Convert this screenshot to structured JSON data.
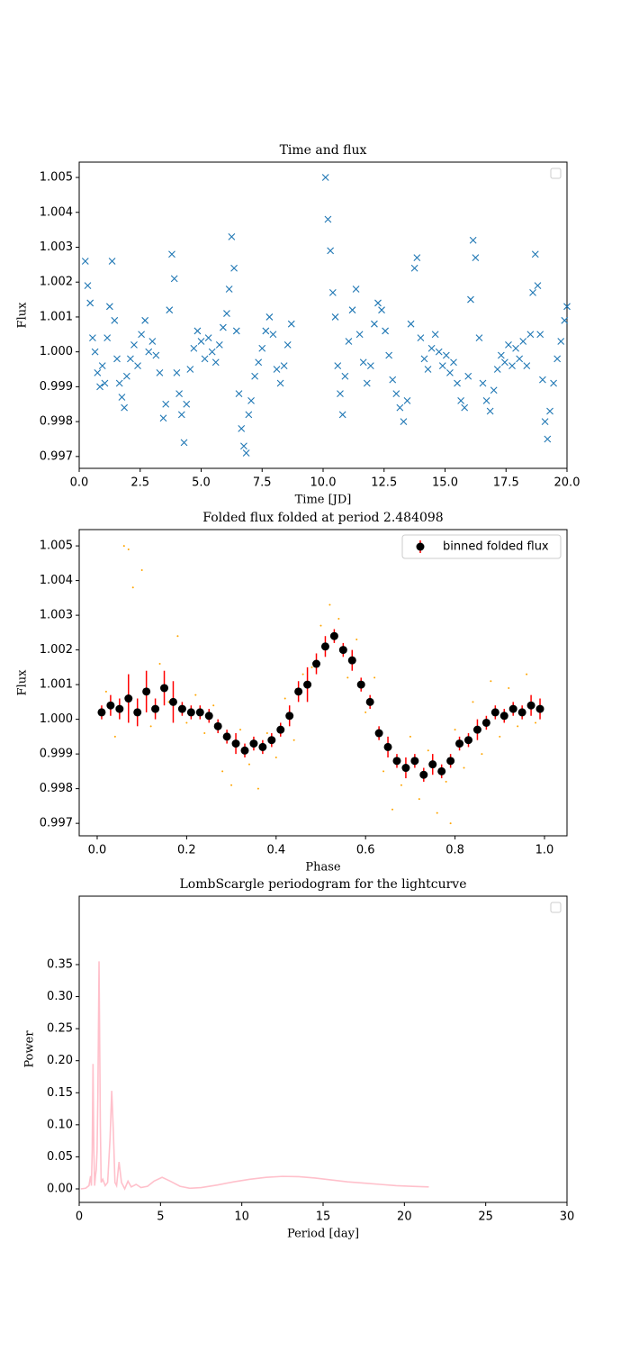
{
  "chart_data": [
    {
      "type": "scatter",
      "title": "Time and flux",
      "xlabel": "Time [JD]",
      "ylabel": "Flux",
      "legend": "upper right",
      "xlim": [
        0,
        20
      ],
      "ylim": [
        0.99666,
        1.00544
      ],
      "xticks": [
        {
          "value": 0,
          "label": "0.0"
        },
        2.5,
        {
          "value": 5,
          "label": "5.0"
        },
        7.5,
        {
          "value": 10,
          "label": "10.0"
        },
        12.5,
        {
          "value": 15,
          "label": "15.0"
        },
        17.5,
        {
          "value": 20,
          "label": "20.0"
        }
      ],
      "yticks": [
        0.997,
        0.998,
        0.999,
        {
          "value": 1,
          "label": "1.000"
        },
        1.001,
        1.002,
        1.003,
        1.004,
        1.005
      ],
      "series": [
        {
          "color": "#1f77b4",
          "marker": "x",
          "x": [
            0.25,
            0.35,
            0.45,
            0.55,
            0.65,
            0.75,
            0.85,
            0.95,
            1.05,
            1.15,
            1.25,
            1.35,
            1.45,
            1.55,
            1.65,
            1.75,
            1.85,
            1.95,
            2.1,
            2.25,
            2.4,
            2.55,
            2.7,
            2.85,
            3.0,
            3.15,
            3.3,
            3.45,
            3.55,
            3.7,
            3.8,
            3.9,
            4.0,
            4.1,
            4.2,
            4.3,
            4.4,
            4.55,
            4.7,
            4.85,
            5.0,
            5.15,
            5.3,
            5.45,
            5.6,
            5.75,
            5.9,
            6.05,
            6.15,
            6.25,
            6.35,
            6.45,
            6.55,
            6.65,
            6.75,
            6.85,
            6.95,
            7.05,
            7.2,
            7.35,
            7.5,
            7.65,
            7.8,
            7.95,
            8.1,
            8.25,
            8.4,
            8.55,
            8.7,
            10.1,
            10.2,
            10.3,
            10.4,
            10.5,
            10.6,
            10.7,
            10.8,
            10.9,
            11.05,
            11.2,
            11.35,
            11.5,
            11.65,
            11.8,
            11.95,
            12.1,
            12.25,
            12.4,
            12.55,
            12.7,
            12.85,
            13.0,
            13.15,
            13.3,
            13.45,
            13.6,
            13.75,
            13.85,
            14.0,
            14.15,
            14.3,
            14.45,
            14.6,
            14.75,
            14.9,
            15.05,
            15.2,
            15.35,
            15.5,
            15.65,
            15.8,
            15.95,
            16.05,
            16.15,
            16.25,
            16.4,
            16.55,
            16.7,
            16.85,
            17.0,
            17.15,
            17.3,
            17.45,
            17.6,
            17.75,
            17.9,
            18.05,
            18.2,
            18.35,
            18.5,
            18.6,
            18.7,
            18.8,
            18.9,
            19.0,
            19.1,
            19.2,
            19.3,
            19.45,
            19.6,
            19.75,
            19.9,
            20.0
          ],
          "values": [
            1.0026,
            1.0019,
            1.0014,
            1.0004,
            1.0,
            0.9994,
            0.999,
            0.9996,
            0.9991,
            1.0004,
            1.0013,
            1.0026,
            1.0009,
            0.9998,
            0.9991,
            0.9987,
            0.9984,
            0.9993,
            0.9998,
            1.0002,
            0.9996,
            1.0005,
            1.0009,
            1.0,
            1.0003,
            0.9999,
            0.9994,
            0.9981,
            0.9985,
            1.0012,
            1.0028,
            1.0021,
            0.9994,
            0.9988,
            0.9982,
            0.9974,
            0.9985,
            0.9995,
            1.0001,
            1.0006,
            1.0003,
            0.9998,
            1.0004,
            1.0,
            0.9997,
            1.0002,
            1.0007,
            1.0011,
            1.0018,
            1.0033,
            1.0024,
            1.0006,
            0.9988,
            0.9978,
            0.9973,
            0.9971,
            0.9982,
            0.9986,
            0.9993,
            0.9997,
            1.0001,
            1.0006,
            1.001,
            1.0005,
            0.9995,
            0.9991,
            0.9996,
            1.0002,
            1.0008,
            1.005,
            1.0038,
            1.0029,
            1.0017,
            1.001,
            0.9996,
            0.9988,
            0.9982,
            0.9993,
            1.0003,
            1.0012,
            1.0018,
            1.0005,
            0.9997,
            0.9991,
            0.9996,
            1.0008,
            1.0014,
            1.0012,
            1.0006,
            0.9999,
            0.9992,
            0.9988,
            0.9984,
            0.998,
            0.9986,
            1.0008,
            1.0024,
            1.0027,
            1.0004,
            0.9998,
            0.9995,
            1.0001,
            1.0005,
            1.0,
            0.9996,
            0.9999,
            0.9994,
            0.9997,
            0.9991,
            0.9986,
            0.9984,
            0.9993,
            1.0015,
            1.0032,
            1.0027,
            1.0004,
            0.9991,
            0.9986,
            0.9983,
            0.9989,
            0.9995,
            0.9999,
            0.9997,
            1.0002,
            0.9996,
            1.0001,
            0.9998,
            1.0003,
            0.9996,
            1.0005,
            1.0017,
            1.0028,
            1.0019,
            1.0005,
            0.9992,
            0.998,
            0.9975,
            0.9983,
            0.9991,
            0.9998,
            1.0003,
            1.0009,
            1.0013
          ]
        }
      ]
    },
    {
      "type": "scatter",
      "title": "Folded flux folded at period 2.484098",
      "xlabel": "Phase",
      "ylabel": "Flux",
      "legend": "upper right",
      "xlim": [
        -0.0402,
        1.0503
      ],
      "ylim": [
        0.99664,
        1.00547
      ],
      "xticks": [
        {
          "value": 0,
          "label": "0.0"
        },
        0.2,
        0.4,
        0.6,
        0.8,
        {
          "value": 1,
          "label": "1.0"
        }
      ],
      "yticks": [
        0.997,
        0.998,
        0.999,
        {
          "value": 1,
          "label": "1.000"
        },
        1.001,
        1.002,
        1.003,
        1.004,
        1.005
      ],
      "series": [
        {
          "color": "orange",
          "marker": ".",
          "x": [
            0.02,
            0.04,
            0.06,
            0.07,
            0.08,
            0.1,
            0.12,
            0.14,
            0.16,
            0.18,
            0.2,
            0.22,
            0.24,
            0.26,
            0.28,
            0.3,
            0.32,
            0.34,
            0.36,
            0.38,
            0.4,
            0.42,
            0.44,
            0.46,
            0.48,
            0.5,
            0.52,
            0.54,
            0.56,
            0.58,
            0.6,
            0.62,
            0.64,
            0.66,
            0.68,
            0.7,
            0.72,
            0.74,
            0.76,
            0.78,
            0.79,
            0.8,
            0.82,
            0.84,
            0.86,
            0.88,
            0.9,
            0.92,
            0.94,
            0.96,
            0.98
          ],
          "values": [
            1.0008,
            0.9995,
            1.005,
            1.0049,
            1.0038,
            1.0043,
            0.9998,
            1.0016,
            1.0005,
            1.0024,
            0.9999,
            1.0007,
            0.9996,
            1.0004,
            0.9985,
            0.9981,
            0.9997,
            0.9987,
            0.998,
            0.9996,
            0.9989,
            1.0006,
            0.9994,
            1.0013,
            1.0015,
            1.0027,
            1.0033,
            1.0029,
            1.0012,
            1.0023,
            1.0002,
            1.0012,
            0.9985,
            0.9974,
            0.9981,
            0.9995,
            0.9977,
            0.9991,
            0.9973,
            0.9982,
            0.997,
            0.9997,
            0.9986,
            1.0005,
            0.999,
            1.0011,
            0.9995,
            1.0009,
            0.9998,
            1.0013,
            0.9999
          ]
        },
        {
          "name": "binned folded flux",
          "color": "black",
          "error_color": "red",
          "marker": "o",
          "x": [
            0.01,
            0.03,
            0.05,
            0.07,
            0.09,
            0.11,
            0.13,
            0.15,
            0.17,
            0.19,
            0.21,
            0.23,
            0.25,
            0.27,
            0.29,
            0.31,
            0.33,
            0.35,
            0.37,
            0.39,
            0.41,
            0.43,
            0.45,
            0.47,
            0.49,
            0.51,
            0.53,
            0.55,
            0.57,
            0.59,
            0.61,
            0.63,
            0.65,
            0.67,
            0.69,
            0.71,
            0.73,
            0.75,
            0.77,
            0.79,
            0.81,
            0.83,
            0.85,
            0.87,
            0.89,
            0.91,
            0.93,
            0.95,
            0.97,
            0.99
          ],
          "values": [
            1.0002,
            1.0004,
            1.0003,
            1.0006,
            1.0002,
            1.0008,
            1.0003,
            1.0009,
            1.0005,
            1.0003,
            1.0002,
            1.0002,
            1.0001,
            0.9998,
            0.9995,
            0.9993,
            0.9991,
            0.9993,
            0.9992,
            0.9994,
            0.9997,
            1.0001,
            1.0008,
            1.001,
            1.0016,
            1.0021,
            1.0024,
            1.002,
            1.0017,
            1.001,
            1.0005,
            0.9996,
            0.9992,
            0.9988,
            0.9986,
            0.9988,
            0.9984,
            0.9987,
            0.9985,
            0.9988,
            0.9993,
            0.9994,
            0.9997,
            0.9999,
            1.0002,
            1.0001,
            1.0003,
            1.0002,
            1.0004,
            1.0003
          ],
          "errors": [
            0.0002,
            0.0003,
            0.0003,
            0.0007,
            0.0004,
            0.0006,
            0.0003,
            0.0005,
            0.0006,
            0.0002,
            0.0002,
            0.0002,
            0.0002,
            0.0002,
            0.0002,
            0.0003,
            0.0002,
            0.0002,
            0.0002,
            0.0002,
            0.0002,
            0.0003,
            0.0003,
            0.0005,
            0.0003,
            0.0003,
            0.0002,
            0.0002,
            0.0003,
            0.0002,
            0.0002,
            0.0002,
            0.0003,
            0.0002,
            0.0003,
            0.0002,
            0.0002,
            0.0003,
            0.0002,
            0.0002,
            0.0002,
            0.0002,
            0.0003,
            0.0002,
            0.0002,
            0.0002,
            0.0002,
            0.0002,
            0.0003,
            0.0003
          ]
        }
      ]
    },
    {
      "type": "line",
      "title": "LombScargle periodogram for the lightcurve",
      "xlabel": "Period [day]",
      "ylabel": "Power",
      "legend": "upper right",
      "xlim": [
        0,
        30
      ],
      "ylim": [
        -0.0211,
        0.4568
      ],
      "xticks": [
        0,
        5,
        10,
        15,
        20,
        25,
        30
      ],
      "yticks": [
        {
          "value": 0,
          "label": "0.00"
        },
        0.05,
        {
          "value": 0.1,
          "label": "0.10"
        },
        0.15,
        {
          "value": 0.2,
          "label": "0.20"
        },
        0.25,
        {
          "value": 0.3,
          "label": "0.30"
        },
        0.35
      ],
      "series": [
        {
          "color": "pink",
          "x": [
            0.1,
            0.4,
            0.6,
            0.7,
            0.75,
            0.8,
            0.85,
            0.9,
            0.95,
            1.0,
            1.05,
            1.1,
            1.15,
            1.22,
            1.3,
            1.35,
            1.45,
            1.6,
            1.75,
            1.9,
            2.0,
            2.1,
            2.2,
            2.3,
            2.45,
            2.6,
            2.8,
            3.0,
            3.2,
            3.5,
            3.8,
            4.2,
            4.6,
            5.1,
            5.6,
            6.2,
            6.8,
            7.5,
            8.5,
            9.5,
            10.5,
            11.5,
            12.5,
            13.5,
            14.5,
            15.5,
            16.5,
            17.5,
            18.5,
            19.5,
            20.5,
            21.5
          ],
          "values": [
            0.0,
            0.001,
            0.005,
            0.02,
            0.005,
            0.06,
            0.195,
            0.06,
            0.005,
            0.02,
            0.03,
            0.06,
            0.15,
            0.355,
            0.1,
            0.01,
            0.015,
            0.005,
            0.01,
            0.08,
            0.153,
            0.09,
            0.01,
            0.005,
            0.042,
            0.01,
            0.0,
            0.012,
            0.003,
            0.007,
            0.002,
            0.004,
            0.012,
            0.018,
            0.012,
            0.004,
            0.001,
            0.002,
            0.006,
            0.011,
            0.015,
            0.018,
            0.0195,
            0.019,
            0.017,
            0.014,
            0.011,
            0.009,
            0.007,
            0.005,
            0.004,
            0.003
          ]
        }
      ]
    }
  ]
}
